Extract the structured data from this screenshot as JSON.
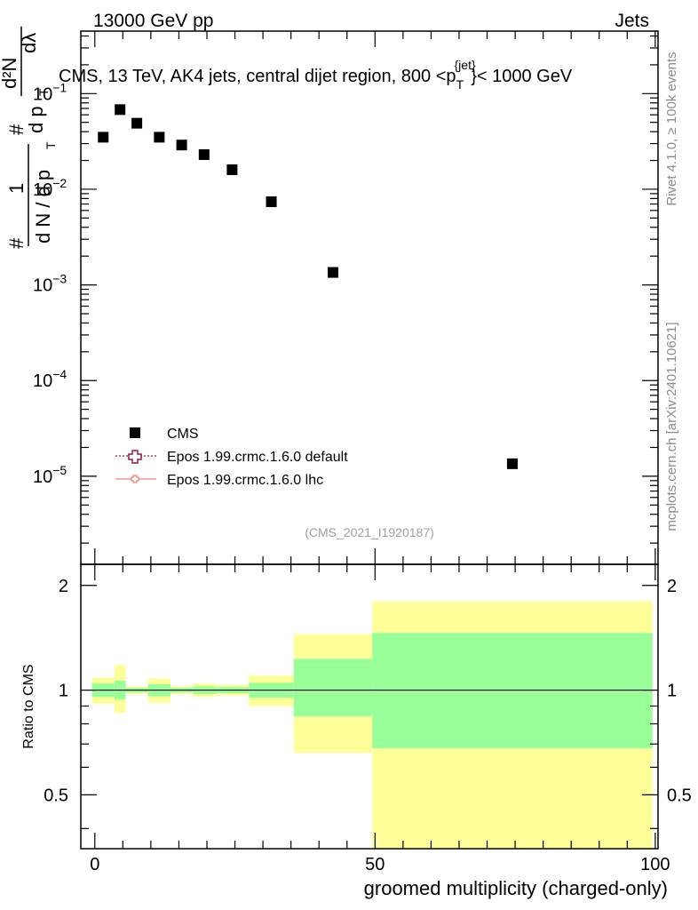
{
  "header": {
    "left": "13000 GeV pp",
    "right": "Jets"
  },
  "side_labels": {
    "rivet": "Rivet 4.1.0, ≥ 100k events",
    "mcplots": "mcplots.cern.ch [arXiv:2401.10621]"
  },
  "y_title": {
    "left_hash": "#",
    "one": "1",
    "dN": "d N / d p",
    "sub_T": "T",
    "hash_top": "#",
    "d2N": "d²N",
    "dpT_dlambda": "d p",
    "sub_T2": "T",
    "dl": "dλ"
  },
  "ratio_ylabel": "Ratio to CMS",
  "chart_data": [
    {
      "type": "scatter",
      "title": "CMS, 13 TeV, AK4 jets, central dijet region, 800 <p_T^{jet}< 1000 GeV",
      "title_parts": {
        "pre": "CMS, 13 TeV, AK4 jets, central dijet region, 800 <p",
        "sup": "{jet}",
        "sub": "T",
        "post": "}< 1000 GeV"
      },
      "analysis_tag": "(CMS_2021_I1920187)",
      "yscale": "log",
      "ylim": [
        1.2e-06,
        0.45
      ],
      "xlim": [
        -2.5,
        100.5
      ],
      "grid": false,
      "yticks": [
        {
          "value": 0.1,
          "base": "10",
          "exp": "−1"
        },
        {
          "value": 0.01,
          "base": "10",
          "exp": "−2"
        },
        {
          "value": 0.001,
          "base": "10",
          "exp": "−3"
        },
        {
          "value": 0.0001,
          "base": "10",
          "exp": "−4"
        },
        {
          "value": 1e-05,
          "base": "10",
          "exp": "−5"
        }
      ],
      "series": [
        {
          "name": "CMS",
          "marker": "square",
          "x": [
            1.5,
            4.5,
            7.5,
            11.5,
            15.5,
            19.5,
            24.5,
            31.5,
            42.5,
            74.5
          ],
          "y": [
            0.035,
            0.068,
            0.049,
            0.035,
            0.029,
            0.023,
            0.016,
            0.0074,
            0.00135,
            1.35e-05
          ]
        },
        {
          "name": "Epos 1.99.crmc.1.6.0 default",
          "marker": "open-cross",
          "color": "#8b1a4a",
          "x": [],
          "y": []
        },
        {
          "name": "Epos 1.99.crmc.1.6.0 lhc",
          "marker": "open-cross",
          "color": "#f08080",
          "x": [],
          "y": []
        }
      ],
      "legend": {
        "placement": "lower-left",
        "entries": [
          "CMS",
          "Epos 1.99.crmc.1.6.0 default",
          "Epos 1.99.crmc.1.6.0 lhc"
        ]
      }
    },
    {
      "type": "area",
      "ylabel": "Ratio to CMS",
      "xlabel": "groomed multiplicity (charged-only)",
      "ylim": [
        0.35,
        2.3
      ],
      "xlim": [
        -2.5,
        100.5
      ],
      "yticks": [
        "0.5",
        "1",
        "2"
      ],
      "xticks": [
        "0",
        "50",
        "100"
      ],
      "reference_line": 1,
      "colors": {
        "outer_band": "#ffff99",
        "inner_band": "#99ff99"
      },
      "bins": [
        {
          "lo": -0.5,
          "hi": 3.5,
          "outer": [
            0.915,
            1.085
          ],
          "inner": [
            0.955,
            1.045
          ]
        },
        {
          "lo": 3.5,
          "hi": 5.5,
          "outer": [
            0.86,
            1.18
          ],
          "inner": [
            0.94,
            1.065
          ]
        },
        {
          "lo": 5.5,
          "hi": 9.5,
          "outer": [
            0.975,
            1.025
          ],
          "inner": [
            0.985,
            1.015
          ]
        },
        {
          "lo": 9.5,
          "hi": 13.5,
          "outer": [
            0.92,
            1.08
          ],
          "inner": [
            0.96,
            1.04
          ]
        },
        {
          "lo": 13.5,
          "hi": 17.5,
          "outer": [
            0.975,
            1.025
          ],
          "inner": [
            0.985,
            1.015
          ]
        },
        {
          "lo": 17.5,
          "hi": 21.5,
          "outer": [
            0.955,
            1.045
          ],
          "inner": [
            0.975,
            1.025
          ]
        },
        {
          "lo": 21.5,
          "hi": 27.5,
          "outer": [
            0.965,
            1.035
          ],
          "inner": [
            0.98,
            1.02
          ]
        },
        {
          "lo": 27.5,
          "hi": 35.5,
          "outer": [
            0.9,
            1.1
          ],
          "inner": [
            0.95,
            1.05
          ]
        },
        {
          "lo": 35.5,
          "hi": 49.5,
          "outer": [
            0.66,
            1.45
          ],
          "inner": [
            0.84,
            1.23
          ]
        },
        {
          "lo": 49.5,
          "hi": 99.5,
          "outer": [
            0.35,
            1.8
          ],
          "inner": [
            0.68,
            1.46
          ]
        }
      ]
    }
  ]
}
